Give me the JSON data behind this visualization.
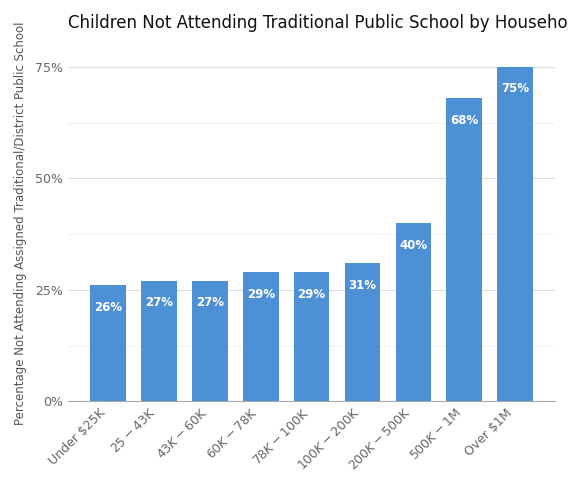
{
  "title": "Children Not Attending Traditional Public School by Household Income",
  "ylabel": "Percentage Not Attending Assigned Traditional/District Public School",
  "categories": [
    "Under $25K",
    "$25-$43K",
    "$43K-$60K",
    "$60K-$78K",
    "$78K-$100K",
    "$100K-$200K",
    "$200K-$500K",
    "$500K-$1M",
    "Over $1M"
  ],
  "values": [
    26,
    27,
    27,
    29,
    29,
    31,
    40,
    68,
    75
  ],
  "bar_color": "#4D90D5",
  "label_color": "#ffffff",
  "background_color": "#ffffff",
  "ylim": [
    0,
    80
  ],
  "yticks": [
    0,
    25,
    50,
    75
  ],
  "ytick_labels": [
    "0%",
    "25%",
    "50%",
    "75%"
  ],
  "minor_yticks": [
    12.5,
    37.5,
    62.5
  ],
  "title_fontsize": 12,
  "ylabel_fontsize": 8.5,
  "tick_fontsize": 9,
  "bar_label_fontsize": 8.5,
  "grid_color": "#dddddd",
  "minor_grid_color": "#eeeeee"
}
